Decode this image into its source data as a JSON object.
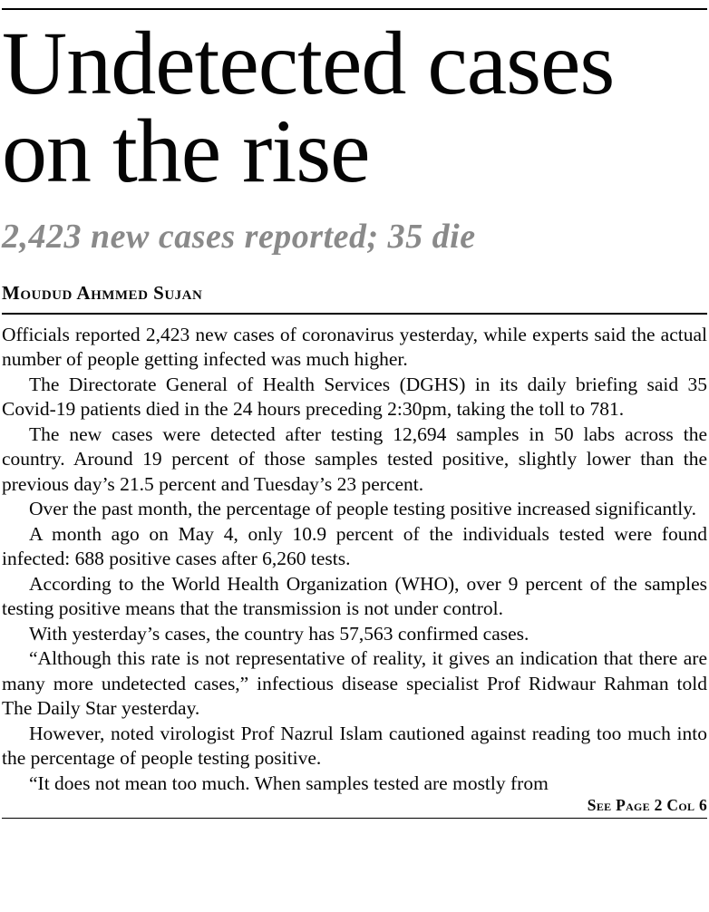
{
  "colors": {
    "background": "#ffffff",
    "text": "#000000",
    "subheadline": "#8a8a8a"
  },
  "article": {
    "headline": "Undetected cases on the rise",
    "subheadline": "2,423 new cases reported; 35 die",
    "byline": "Moudud Ahmmed Sujan",
    "paragraphs": [
      "Officials reported 2,423 new cases of coronavirus yesterday, while experts said the actual number of people getting infected was much higher.",
      "The Directorate General of Health Services (DGHS) in its daily briefing said 35 Covid-19 patients died in the 24 hours preceding 2:30pm, taking the toll to 781.",
      "The new cases were detected after testing 12,694 samples in 50 labs across the country. Around 19 percent of those samples tested positive, slightly lower than the previous day’s 21.5 percent and Tuesday’s 23 percent.",
      "Over the past month, the percentage of people testing positive increased significantly.",
      "A month ago on May 4, only 10.9 percent of the individuals tested were found infected: 688 positive cases after 6,260 tests.",
      "According to the World Health Organization (WHO), over 9 percent of the samples testing positive means that the transmission is not under control.",
      "With yesterday’s cases, the country has 57,563 confirmed cases.",
      "“Although this rate is not representative of reality, it gives an indication that there are many more undetected cases,” infectious disease specialist Prof Ridwaur Rahman told The Daily Star yesterday.",
      "However, noted virologist Prof Nazrul Islam cautioned against reading too much into the percentage of people testing positive.",
      "“It does not mean too much. When samples tested are mostly from"
    ],
    "continuation": "See Page 2 Col 6"
  }
}
